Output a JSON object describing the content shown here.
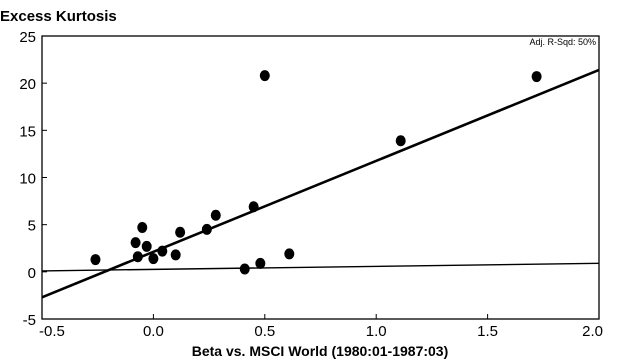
{
  "chart_data": {
    "type": "scatter",
    "title": "Excess Kurtosis",
    "xlabel": "Beta vs. MSCI World (1980:01-1987:03)",
    "ylabel": "",
    "annotation": "Adj. R-Sqd: 50%",
    "xlim": [
      -0.5,
      2.0
    ],
    "ylim": [
      -5,
      25
    ],
    "xticks": [
      -0.5,
      0.0,
      0.5,
      1.0,
      1.5,
      2.0
    ],
    "xtick_labels": [
      "-0.5",
      "0.0",
      "0.5",
      "1.0",
      "1.5",
      "2.0"
    ],
    "yticks": [
      -5,
      0,
      5,
      10,
      15,
      20,
      25
    ],
    "ytick_labels": [
      "-5",
      "0",
      "5",
      "10",
      "15",
      "20",
      "25"
    ],
    "grid": false,
    "points": [
      {
        "x": -0.26,
        "y": 1.3
      },
      {
        "x": -0.08,
        "y": 3.1
      },
      {
        "x": -0.07,
        "y": 1.6
      },
      {
        "x": -0.05,
        "y": 4.7
      },
      {
        "x": -0.03,
        "y": 2.7
      },
      {
        "x": 0.0,
        "y": 1.4
      },
      {
        "x": 0.04,
        "y": 2.2
      },
      {
        "x": 0.1,
        "y": 1.8
      },
      {
        "x": 0.12,
        "y": 4.2
      },
      {
        "x": 0.24,
        "y": 4.5
      },
      {
        "x": 0.28,
        "y": 6.0
      },
      {
        "x": 0.41,
        "y": 0.3
      },
      {
        "x": 0.45,
        "y": 6.9
      },
      {
        "x": 0.48,
        "y": 0.9
      },
      {
        "x": 0.5,
        "y": 20.8
      },
      {
        "x": 0.61,
        "y": 1.9
      },
      {
        "x": 1.11,
        "y": 13.9
      },
      {
        "x": 1.72,
        "y": 20.7
      }
    ],
    "regression_line": {
      "x": [
        -0.5,
        2.0
      ],
      "y": [
        -2.7,
        21.4
      ]
    },
    "reference_line": {
      "x": [
        -0.5,
        2.0
      ],
      "y": [
        0.1,
        0.9
      ]
    }
  }
}
